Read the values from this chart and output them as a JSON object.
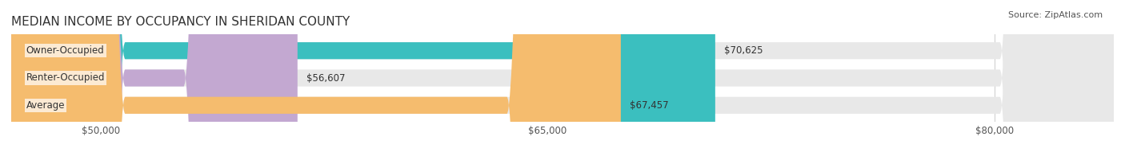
{
  "title": "MEDIAN INCOME BY OCCUPANCY IN SHERIDAN COUNTY",
  "source": "Source: ZipAtlas.com",
  "categories": [
    "Owner-Occupied",
    "Renter-Occupied",
    "Average"
  ],
  "values": [
    70625,
    56607,
    67457
  ],
  "labels": [
    "$70,625",
    "$56,607",
    "$67,457"
  ],
  "bar_colors": [
    "#3bbfbf",
    "#c3a8d1",
    "#f5bc6e"
  ],
  "bar_track_color": "#e8e8e8",
  "xlim_min": 47000,
  "xlim_max": 84000,
  "xticks": [
    50000,
    65000,
    80000
  ],
  "xtick_labels": [
    "$50,000",
    "$65,000",
    "$80,000"
  ],
  "bar_height": 0.62,
  "title_fontsize": 11,
  "label_fontsize": 8.5,
  "tick_fontsize": 8.5,
  "source_fontsize": 8
}
